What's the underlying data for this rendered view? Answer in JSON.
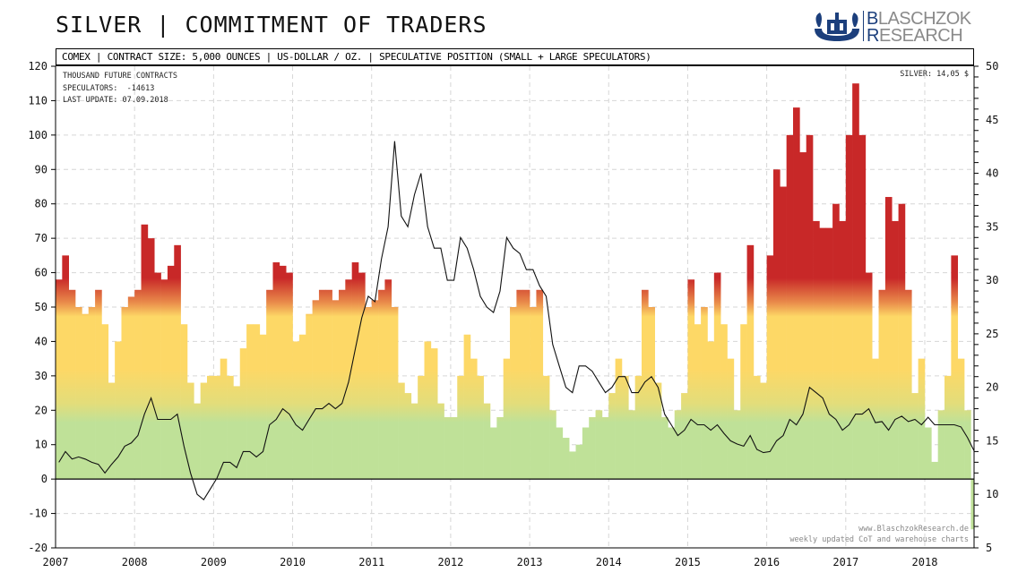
{
  "title": "SILVER | COMMITMENT OF TRADERS",
  "logo": {
    "line1": "BLASCHZOK",
    "line2": "RESEARCH"
  },
  "header": "COMEX | CONTRACT SIZE: 5,000 OUNCES | US-DOLLAR / OZ. | SPECULATIVE POSITION (SMALL + LARGE SPECULATORS)",
  "info": {
    "units": "THOUSAND FUTURE CONTRACTS",
    "speculators": "SPECULATORS:  -14613",
    "last_update": "LAST UPDATE: 07.09.2018",
    "silver_price": "SILVER: 14,05 $"
  },
  "footer": {
    "url": "www.BlaschzokResearch.de",
    "tagline": "weekly updated CoT and warehouse charts"
  },
  "colors": {
    "green": "#bfe198",
    "yellow": "#fdd866",
    "red": "#c82828",
    "line": "#111111"
  },
  "chart_data": {
    "type": "bar+line",
    "title": "SILVER | COMMITMENT OF TRADERS",
    "x_start": 2007,
    "x_step": "month",
    "xticks": [
      "2007",
      "2008",
      "2009",
      "2010",
      "2011",
      "2012",
      "2013",
      "2014",
      "2015",
      "2016",
      "2017",
      "2018"
    ],
    "y_left": {
      "label": "THOUSAND FUTURE CONTRACTS",
      "range": [
        -20,
        120
      ],
      "ticks": [
        -20,
        -10,
        0,
        10,
        20,
        30,
        40,
        50,
        60,
        70,
        80,
        90,
        100,
        110,
        120
      ]
    },
    "y_right": {
      "label": "US-DOLLAR / OZ.",
      "range": [
        5,
        50
      ],
      "ticks": [
        5,
        10,
        15,
        20,
        25,
        30,
        35,
        40,
        45,
        50
      ]
    },
    "grid": true,
    "series": [
      {
        "name": "Speculative position (thousand contracts)",
        "axis": "left",
        "type": "bar",
        "values": [
          58,
          65,
          55,
          50,
          48,
          50,
          55,
          45,
          28,
          40,
          50,
          53,
          55,
          74,
          70,
          60,
          58,
          62,
          68,
          45,
          28,
          22,
          28,
          30,
          30,
          35,
          30,
          27,
          38,
          45,
          45,
          42,
          55,
          63,
          62,
          60,
          40,
          42,
          48,
          52,
          55,
          55,
          52,
          55,
          58,
          63,
          60,
          50,
          52,
          55,
          58,
          50,
          28,
          25,
          22,
          30,
          40,
          38,
          22,
          18,
          18,
          30,
          42,
          35,
          30,
          22,
          15,
          18,
          35,
          50,
          55,
          55,
          50,
          55,
          30,
          20,
          15,
          12,
          8,
          10,
          15,
          18,
          20,
          18,
          25,
          35,
          30,
          20,
          30,
          55,
          50,
          28,
          18,
          15,
          20,
          25,
          58,
          45,
          50,
          40,
          60,
          45,
          35,
          20,
          45,
          68,
          30,
          28,
          65,
          90,
          85,
          100,
          108,
          95,
          100,
          75,
          73,
          73,
          80,
          75,
          100,
          115,
          100,
          60,
          35,
          55,
          82,
          75,
          80,
          55,
          25,
          35,
          15,
          5,
          20,
          30,
          65,
          35,
          20,
          -14.6
        ]
      },
      {
        "name": "Silver price (USD/oz)",
        "axis": "right",
        "type": "line",
        "values": [
          13,
          14,
          13.3,
          13.5,
          13.3,
          13,
          12.8,
          12,
          12.8,
          13.5,
          14.5,
          14.8,
          15.5,
          17.5,
          19,
          17,
          17,
          17,
          17.5,
          14.5,
          12,
          10,
          9.5,
          10.5,
          11.5,
          13,
          13,
          12.5,
          14,
          14,
          13.5,
          14,
          16.5,
          17,
          18,
          17.5,
          16.5,
          16,
          17,
          18,
          18,
          18.5,
          18,
          18.5,
          20.5,
          23.5,
          26.5,
          28.5,
          28,
          32,
          35,
          43,
          36,
          35,
          38,
          40,
          35,
          33,
          33,
          30,
          30,
          34,
          33,
          31,
          28.5,
          27.5,
          27,
          29,
          34,
          33,
          32.5,
          31,
          31,
          29.5,
          28.5,
          24,
          22,
          20,
          19.5,
          22,
          22,
          21.5,
          20.5,
          19.5,
          20,
          21,
          21,
          19.5,
          19.5,
          20.5,
          21,
          20,
          17.5,
          16.5,
          15.5,
          16,
          17,
          16.5,
          16.5,
          16,
          16.5,
          15.7,
          15,
          14.7,
          14.5,
          15.5,
          14.2,
          13.9,
          14,
          15,
          15.5,
          17,
          16.5,
          17.5,
          20,
          19.5,
          19,
          17.5,
          17,
          16,
          16.5,
          17.5,
          17.5,
          18,
          16.7,
          16.8,
          16,
          17,
          17.3,
          16.8,
          17,
          16.5,
          17.2,
          16.5,
          16.5,
          16.5,
          16.5,
          16.3,
          15.3,
          14.05
        ]
      }
    ]
  }
}
